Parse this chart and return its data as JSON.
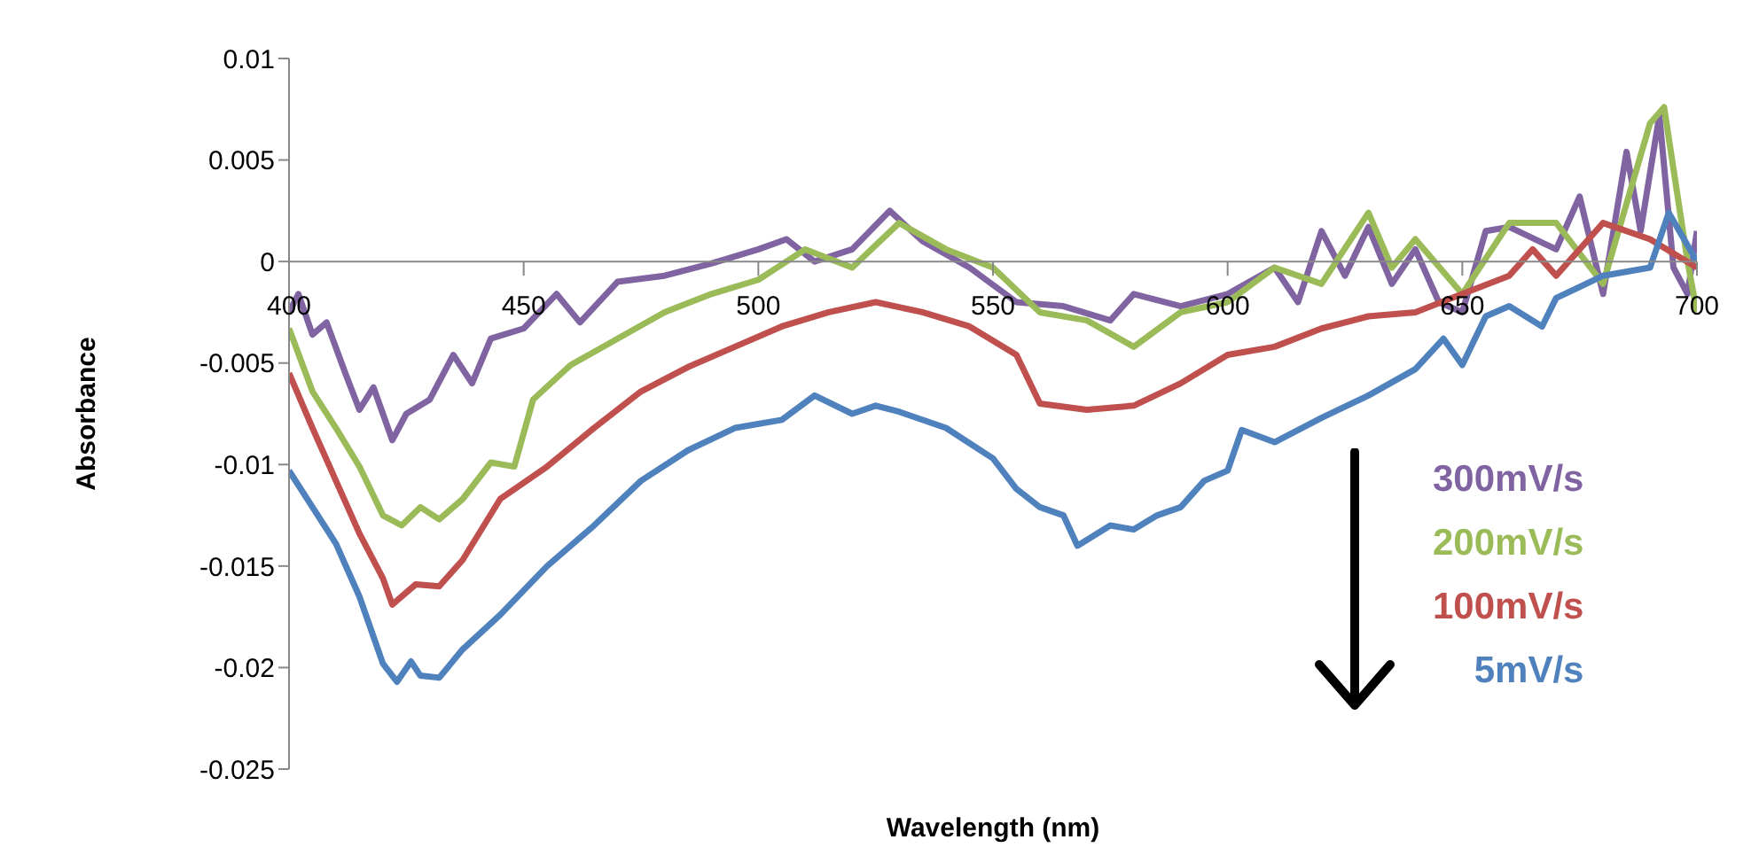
{
  "chart_data": {
    "type": "line",
    "xlabel": "Wavelength (nm)",
    "ylabel": "Absorbance",
    "xlim": [
      400,
      700
    ],
    "xticks": [
      400,
      450,
      500,
      550,
      600,
      650,
      700
    ],
    "ylim": [
      -0.025,
      0.01
    ],
    "yticks": [
      -0.025,
      -0.02,
      -0.015,
      -0.01,
      -0.005,
      0,
      0.005,
      0.01
    ],
    "grid": false,
    "legend": "bottom right",
    "marker": "none",
    "line_style": "solid",
    "series": [
      {
        "name": "300mV/s",
        "color": "#8064a2",
        "x": [
          400,
          402,
          405,
          408,
          412,
          415,
          418,
          422,
          425,
          430,
          435,
          439,
          443,
          450,
          457,
          462,
          470,
          480,
          490,
          500,
          506,
          512,
          520,
          528,
          535,
          545,
          555,
          565,
          575,
          580,
          590,
          600,
          610,
          615,
          620,
          625,
          630,
          635,
          640,
          645,
          650,
          655,
          660,
          670,
          675,
          680,
          685,
          688,
          692,
          695,
          698,
          700
        ],
        "values": [
          -0.0025,
          -0.0016,
          -0.0036,
          -0.003,
          -0.0055,
          -0.0073,
          -0.0062,
          -0.0088,
          -0.0075,
          -0.0068,
          -0.0046,
          -0.006,
          -0.0038,
          -0.0033,
          -0.0016,
          -0.003,
          -0.001,
          -0.0007,
          -0.0001,
          0.0006,
          0.0011,
          0,
          0.0006,
          0.0025,
          0.001,
          -0.0003,
          -0.002,
          -0.0022,
          -0.0029,
          -0.0016,
          -0.0022,
          -0.0016,
          -0.0003,
          -0.002,
          0.0015,
          -0.0007,
          0.0017,
          -0.0011,
          0.0006,
          -0.002,
          -0.0025,
          0.0015,
          0.0017,
          0.0006,
          0.0032,
          -0.0016,
          0.0054,
          0.0015,
          0.0072,
          -0.0003,
          -0.0016,
          0.0015
        ]
      },
      {
        "name": "200mV/s",
        "color": "#9bbb59",
        "x": [
          400,
          405,
          410,
          415,
          420,
          424,
          428,
          432,
          437,
          443,
          448,
          452,
          460,
          470,
          480,
          490,
          500,
          510,
          520,
          530,
          540,
          550,
          560,
          570,
          580,
          590,
          600,
          610,
          620,
          630,
          635,
          640,
          650,
          660,
          670,
          680,
          690,
          693,
          698,
          700
        ],
        "values": [
          -0.0033,
          -0.0064,
          -0.0082,
          -0.0101,
          -0.0125,
          -0.013,
          -0.0121,
          -0.0127,
          -0.0117,
          -0.0099,
          -0.0101,
          -0.0068,
          -0.0051,
          -0.0038,
          -0.0025,
          -0.0016,
          -0.0009,
          0.0006,
          -0.0003,
          0.0019,
          0.0006,
          -0.0003,
          -0.0025,
          -0.0029,
          -0.0042,
          -0.0025,
          -0.002,
          -0.0003,
          -0.0011,
          0.0024,
          -0.0003,
          0.0011,
          -0.0016,
          0.0019,
          0.0019,
          -0.0011,
          0.0068,
          0.0076,
          0,
          -0.0025
        ]
      },
      {
        "name": "100mV/s",
        "color": "#c0504d",
        "x": [
          400,
          405,
          410,
          415,
          420,
          422,
          427,
          432,
          437,
          445,
          455,
          465,
          475,
          485,
          495,
          505,
          515,
          525,
          535,
          545,
          555,
          560,
          570,
          580,
          590,
          600,
          610,
          620,
          630,
          640,
          650,
          660,
          665,
          670,
          680,
          690,
          700
        ],
        "values": [
          -0.0055,
          -0.0082,
          -0.0108,
          -0.0134,
          -0.0156,
          -0.0169,
          -0.0159,
          -0.016,
          -0.0147,
          -0.0117,
          -0.0101,
          -0.0082,
          -0.0064,
          -0.0052,
          -0.0042,
          -0.0032,
          -0.0025,
          -0.002,
          -0.0025,
          -0.0032,
          -0.0046,
          -0.007,
          -0.0073,
          -0.0071,
          -0.006,
          -0.0046,
          -0.0042,
          -0.0033,
          -0.0027,
          -0.0025,
          -0.0016,
          -0.0007,
          0.0006,
          -0.0007,
          0.0019,
          0.0011,
          -0.0003
        ]
      },
      {
        "name": "5mV/s",
        "color": "#4f81bd",
        "x": [
          400,
          405,
          410,
          415,
          420,
          423,
          426,
          428,
          432,
          437,
          445,
          455,
          465,
          475,
          485,
          495,
          505,
          512,
          520,
          525,
          530,
          540,
          550,
          555,
          560,
          565,
          568,
          575,
          580,
          585,
          590,
          595,
          600,
          603,
          610,
          620,
          630,
          640,
          646,
          650,
          655,
          660,
          667,
          670,
          680,
          690,
          694,
          700
        ],
        "values": [
          -0.0103,
          -0.0121,
          -0.0139,
          -0.0165,
          -0.0198,
          -0.0207,
          -0.0197,
          -0.0204,
          -0.0205,
          -0.0191,
          -0.0174,
          -0.015,
          -0.013,
          -0.0108,
          -0.0093,
          -0.0082,
          -0.0078,
          -0.0066,
          -0.0075,
          -0.0071,
          -0.0074,
          -0.0082,
          -0.0097,
          -0.0112,
          -0.0121,
          -0.0125,
          -0.014,
          -0.013,
          -0.0132,
          -0.0125,
          -0.0121,
          -0.0108,
          -0.0103,
          -0.0083,
          -0.0089,
          -0.0077,
          -0.0066,
          -0.0053,
          -0.0038,
          -0.0051,
          -0.0027,
          -0.0022,
          -0.0032,
          -0.0018,
          -0.0007,
          -0.0003,
          0.0024,
          0
        ]
      }
    ]
  }
}
